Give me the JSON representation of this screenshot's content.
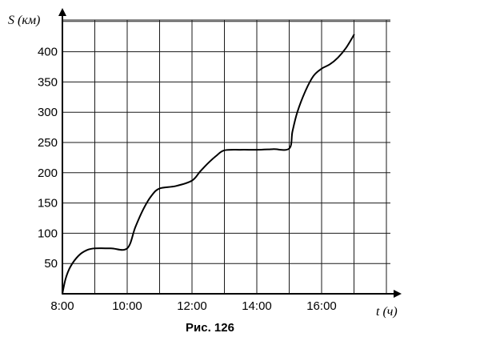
{
  "chart_data": {
    "type": "line",
    "ylabel": "S (км)",
    "xlabel": "t (ч)",
    "caption": "Рис. 126",
    "xlim": [
      8,
      17.5
    ],
    "ylim": [
      0,
      430
    ],
    "x_grid_step": 1,
    "y_grid_step": 50,
    "grid": true,
    "x_tick_values": [
      8,
      10,
      12,
      14,
      16
    ],
    "x_tick_labels": [
      "8:00",
      "10:00",
      "12:00",
      "14:00",
      "16:00"
    ],
    "y_tick_values": [
      50,
      100,
      150,
      200,
      250,
      300,
      350,
      400
    ],
    "y_tick_labels": [
      "50",
      "100",
      "150",
      "200",
      "250",
      "300",
      "350",
      "400"
    ],
    "series": [
      {
        "x": [
          8,
          8.1,
          8.25,
          8.5,
          8.75,
          9,
          9.5,
          10,
          10.25,
          10.5,
          10.75,
          11,
          11.5,
          12,
          12.25,
          12.5,
          12.75,
          13,
          13.5,
          14,
          14.5,
          15,
          15.1,
          15.25,
          15.5,
          15.75,
          16,
          16.25,
          16.5,
          16.75,
          17
        ],
        "y": [
          0,
          25,
          45,
          63,
          72,
          75,
          75,
          75,
          110,
          140,
          162,
          174,
          178,
          187,
          202,
          216,
          228,
          237,
          238,
          238,
          239,
          240,
          268,
          300,
          335,
          360,
          372,
          379,
          390,
          406,
          428
        ]
      }
    ]
  }
}
